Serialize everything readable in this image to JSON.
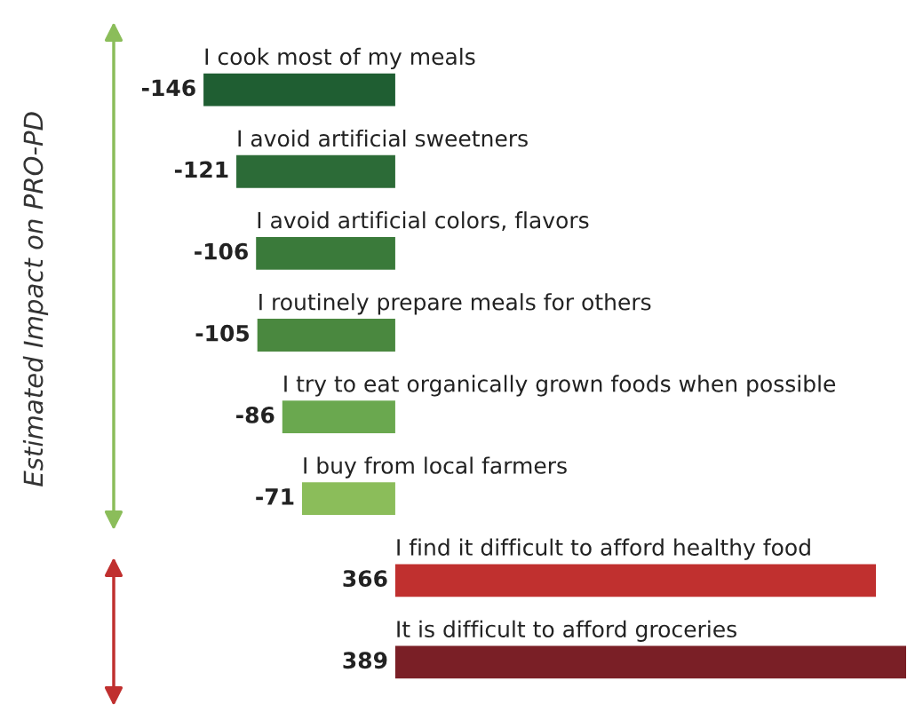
{
  "chart_data": {
    "type": "bar",
    "orientation": "horizontal",
    "annotations": [
      "Estimated Impact on PRO-PD"
    ],
    "categories": [
      "I cook most of my meals",
      "I avoid artificial sweetners",
      "I avoid artificial colors, flavors",
      "I routinely prepare meals for others",
      "I try to eat organically grown foods when possible",
      "I buy from local farmers",
      "I find it difficult to afford healthy food",
      "It is difficult to afford groceries"
    ],
    "values": [
      -146,
      -121,
      -106,
      -105,
      -86,
      -71,
      366,
      389
    ],
    "colors": [
      "#1f5e32",
      "#2c6b37",
      "#3a7a3a",
      "#4a883f",
      "#6aa84f",
      "#8bbd5a",
      "#c0302f",
      "#7a1f26"
    ],
    "data_labels": true
  }
}
